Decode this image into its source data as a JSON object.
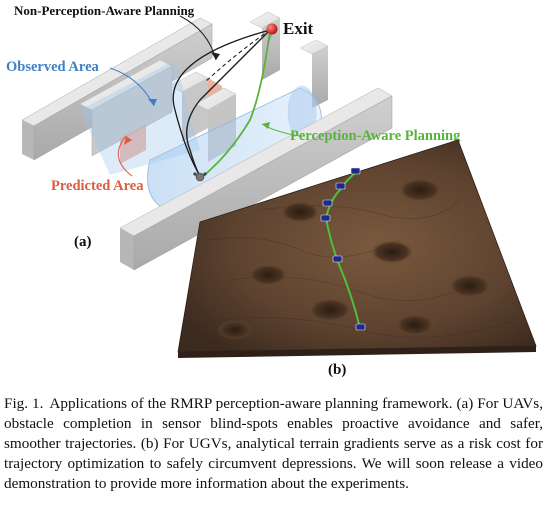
{
  "panel_a": {
    "label": "(a)",
    "labels": {
      "non_perception": "Non-Perception-Aware Planning",
      "exit": "Exit",
      "observed": "Observed Area",
      "predicted": "Predicted Area",
      "perception": "Perception-Aware Planning"
    }
  },
  "panel_b": {
    "label": "(b)"
  },
  "caption": {
    "lead": "Fig. 1.",
    "text": "Applications of the RMRP perception-aware planning framework. (a) For UAVs, obstacle completion in sensor blind-spots enables proactive avoidance and safer, smoother trajectories. (b) For UGVs, analytical terrain gradients serve as a risk cost for trajectory optimization to safely circumvent depressions. We will soon release a video demonstration to provide more information about the experiments."
  },
  "colors": {
    "observed_text": "#3f7fc4",
    "predicted_text": "#e05a40",
    "perception_text": "#55b43c",
    "exit_dot": "#d42020"
  }
}
